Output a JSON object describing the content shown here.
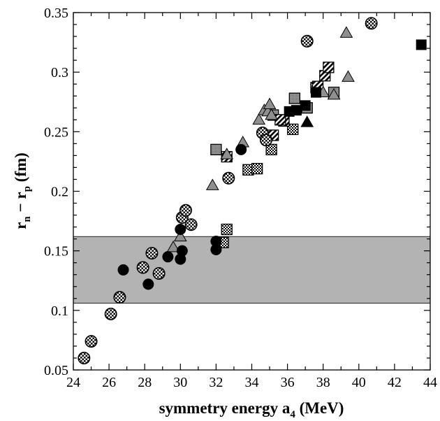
{
  "chart_data": {
    "type": "scatter",
    "title": "",
    "xlabel": "symmetry energy a",
    "xlabel_sub": "4",
    "xlabel_unit": " (MeV)",
    "ylabel_parts": {
      "r1": "r",
      "s1": "n",
      "dash": " − ",
      "r2": "r",
      "s2": "p",
      "unit": " (fm)"
    },
    "xlim": [
      24,
      44
    ],
    "ylim": [
      0.05,
      0.35
    ],
    "xticks": [
      "24",
      "26",
      "28",
      "30",
      "32",
      "34",
      "36",
      "38",
      "40",
      "42",
      "44"
    ],
    "yticks": [
      "0.05",
      "0.1",
      "0.15",
      "0.2",
      "0.25",
      "0.3",
      "0.35"
    ],
    "grid": false,
    "shaded_band": {
      "ymin": 0.106,
      "ymax": 0.162,
      "color": "#b3b3b3"
    },
    "series": [
      {
        "marker": "circle-solid",
        "color": "#000000",
        "points": [
          [
            26.8,
            0.134
          ],
          [
            28.2,
            0.122
          ],
          [
            29.3,
            0.145
          ],
          [
            30.0,
            0.168
          ],
          [
            30.0,
            0.143
          ],
          [
            30.1,
            0.15
          ],
          [
            32.0,
            0.158
          ],
          [
            32.0,
            0.151
          ],
          [
            33.4,
            0.235
          ]
        ]
      },
      {
        "marker": "circle-checker",
        "points": [
          [
            24.6,
            0.06
          ],
          [
            25.0,
            0.074
          ],
          [
            26.1,
            0.097
          ],
          [
            26.6,
            0.111
          ],
          [
            27.9,
            0.136
          ],
          [
            28.4,
            0.148
          ],
          [
            28.8,
            0.131
          ],
          [
            30.1,
            0.178
          ],
          [
            30.3,
            0.184
          ],
          [
            30.6,
            0.172
          ],
          [
            32.7,
            0.211
          ],
          [
            34.6,
            0.249
          ],
          [
            34.8,
            0.243
          ],
          [
            37.1,
            0.326
          ],
          [
            40.7,
            0.341
          ]
        ]
      },
      {
        "marker": "triangle-gray",
        "points": [
          [
            29.6,
            0.153
          ],
          [
            30.0,
            0.162
          ],
          [
            31.8,
            0.205
          ],
          [
            32.6,
            0.231
          ],
          [
            33.5,
            0.241
          ],
          [
            34.4,
            0.26
          ],
          [
            34.7,
            0.268
          ],
          [
            34.9,
            0.267
          ],
          [
            35.0,
            0.273
          ],
          [
            35.1,
            0.264
          ],
          [
            38.0,
            0.283
          ],
          [
            38.6,
            0.281
          ],
          [
            39.3,
            0.333
          ],
          [
            39.4,
            0.296
          ]
        ]
      },
      {
        "marker": "triangle-solid",
        "color": "#000000",
        "points": [
          [
            37.1,
            0.258
          ]
        ]
      },
      {
        "marker": "square-solid",
        "color": "#000000",
        "points": [
          [
            36.1,
            0.267
          ],
          [
            36.5,
            0.268
          ],
          [
            37.0,
            0.272
          ],
          [
            37.6,
            0.283
          ],
          [
            43.5,
            0.323
          ]
        ]
      },
      {
        "marker": "square-gray",
        "points": [
          [
            32.0,
            0.235
          ],
          [
            35.2,
            0.264
          ],
          [
            36.4,
            0.278
          ],
          [
            38.6,
            0.283
          ],
          [
            37.1,
            0.27
          ]
        ]
      },
      {
        "marker": "square-checker",
        "points": [
          [
            32.4,
            0.157
          ],
          [
            32.6,
            0.168
          ],
          [
            33.8,
            0.218
          ],
          [
            34.3,
            0.219
          ],
          [
            35.1,
            0.235
          ],
          [
            36.3,
            0.252
          ],
          [
            37.6,
            0.287
          ]
        ]
      },
      {
        "marker": "square-striped",
        "points": [
          [
            32.6,
            0.229
          ],
          [
            35.2,
            0.247
          ],
          [
            35.8,
            0.259
          ],
          [
            37.7,
            0.288
          ],
          [
            38.1,
            0.297
          ],
          [
            38.3,
            0.304
          ],
          [
            35.6,
            0.26
          ]
        ]
      }
    ]
  }
}
